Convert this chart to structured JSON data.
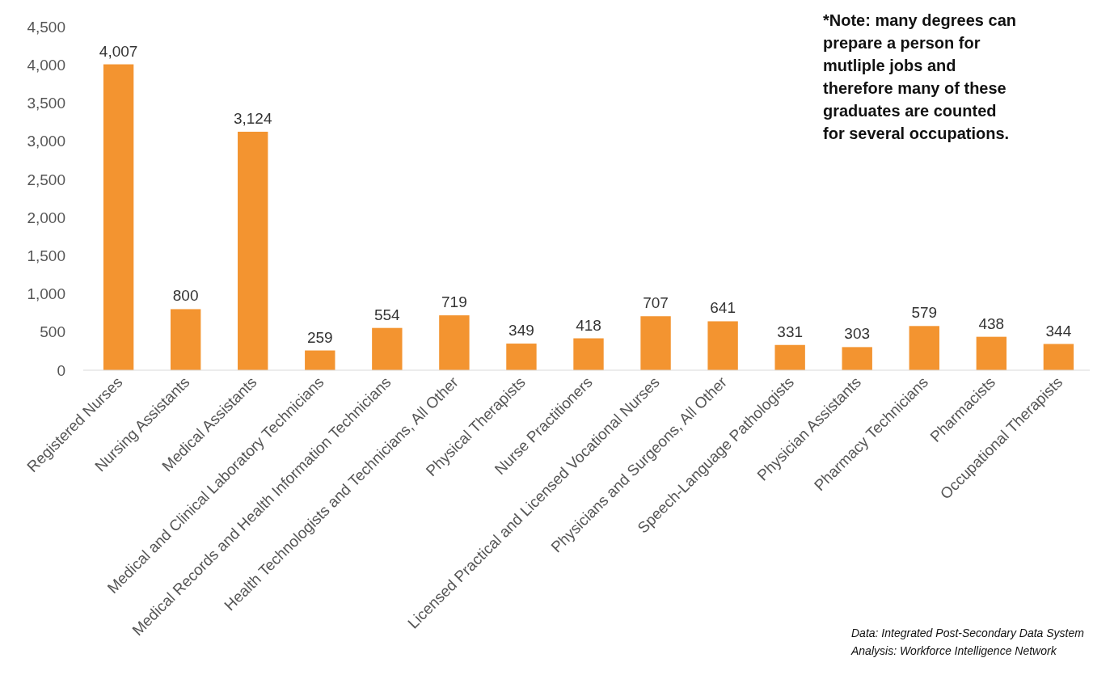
{
  "chart_data": {
    "type": "bar",
    "categories": [
      "Registered Nurses",
      "Nursing Assistants",
      "Medical Assistants",
      "Medical and Clinical Laboratory Technicians",
      "Medical Records and Health Information Technicians",
      "Health Technologists and Technicians, All Other",
      "Physical Therapists",
      "Nurse Practitioners",
      "Licensed Practical and Licensed Vocational Nurses",
      "Physicians and Surgeons, All Other",
      "Speech-Language Pathologists",
      "Physician Assistants",
      "Pharmacy Technicians",
      "Pharmacists",
      "Occupational Therapists"
    ],
    "values": [
      4007,
      800,
      3124,
      259,
      554,
      719,
      349,
      418,
      707,
      641,
      331,
      303,
      579,
      438,
      344
    ],
    "value_labels": [
      "4,007",
      "800",
      "3,124",
      "259",
      "554",
      "719",
      "349",
      "418",
      "707",
      "641",
      "331",
      "303",
      "579",
      "438",
      "344"
    ],
    "color": "#f39430",
    "ylim": [
      0,
      4500
    ],
    "yticks": [
      {
        "value": 0,
        "label": "0"
      },
      {
        "value": 500,
        "label": "500"
      },
      {
        "value": 1000,
        "label": "1,000"
      },
      {
        "value": 1500,
        "label": "1,500"
      },
      {
        "value": 2000,
        "label": "2,000"
      },
      {
        "value": 2500,
        "label": "2,500"
      },
      {
        "value": 3000,
        "label": "3,000"
      },
      {
        "value": 3500,
        "label": "3,500"
      },
      {
        "value": 4000,
        "label": "4,000"
      },
      {
        "value": 4500,
        "label": "4,500"
      }
    ],
    "grid": false,
    "annotations": [
      "*Note: many degrees can prepare a person for mutliple jobs and therefore many of these graduates are counted for several occupations.",
      "Data: Integrated Post-Secondary Data System",
      "Analysis: Workforce Intelligence Network"
    ]
  }
}
